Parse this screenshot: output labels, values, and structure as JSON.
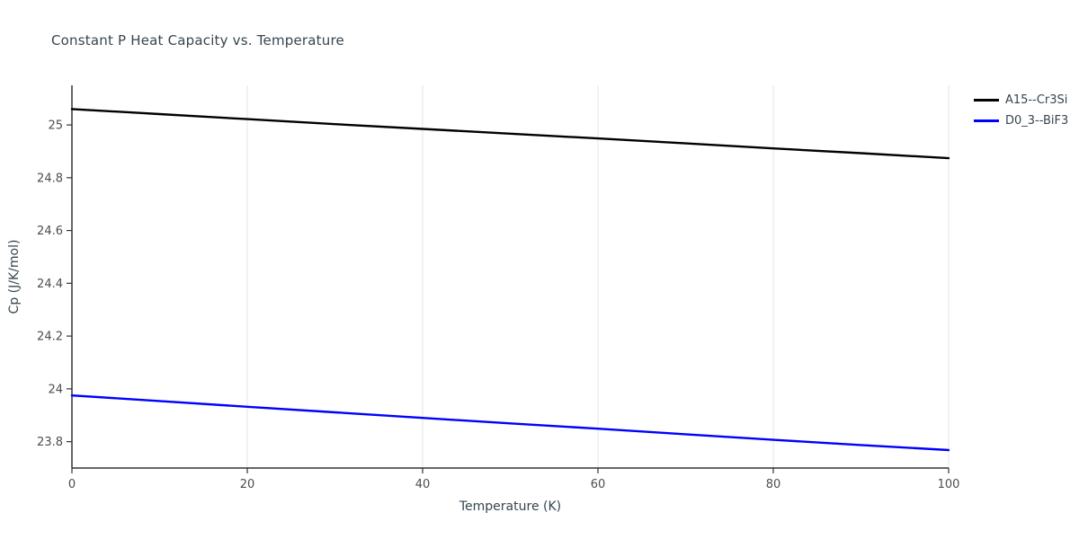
{
  "colors": {
    "background": "#ffffff",
    "grid": "#e6e6e6",
    "spine": "#333333",
    "tick": "#333333",
    "tick_label": "#4d4d4d",
    "title": "#36454f",
    "axis_label": "#36454f"
  },
  "chart_data": {
    "type": "line",
    "title": "Constant P Heat Capacity vs. Temperature",
    "xlabel": "Temperature (K)",
    "ylabel": "Cp (J/K/mol)",
    "xlim": [
      0,
      100
    ],
    "ylim": [
      23.7,
      25.15
    ],
    "x_ticks": [
      0,
      20,
      40,
      60,
      80,
      100
    ],
    "y_ticks": [
      23.8,
      24,
      24.2,
      24.4,
      24.6,
      24.8,
      25
    ],
    "grid": "vertical-only",
    "legend_position": "top-right-outside",
    "x": [
      0,
      10,
      20,
      30,
      40,
      50,
      60,
      70,
      80,
      90,
      100
    ],
    "series": [
      {
        "name": "A15--Cr3Si",
        "color": "#000000",
        "values": [
          25.06,
          25.041,
          25.022,
          25.003,
          24.985,
          24.967,
          24.949,
          24.93,
          24.911,
          24.893,
          24.874
        ]
      },
      {
        "name": "D0_3--BiF3",
        "color": "#0000ff",
        "values": [
          23.975,
          23.954,
          23.932,
          23.911,
          23.89,
          23.869,
          23.849,
          23.828,
          23.807,
          23.787,
          23.768
        ]
      }
    ]
  }
}
